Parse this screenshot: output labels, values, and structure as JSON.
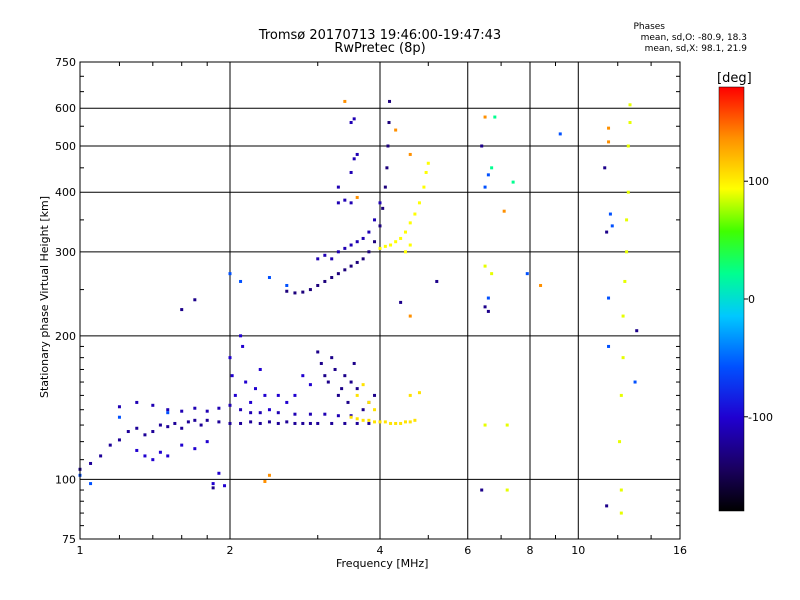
{
  "header": {
    "title_line1": "Tromsø 20170713 19:46:00-19:47:43",
    "title_line2": "RwPretec (8p)",
    "stats_title": "Phases",
    "stats_o": "mean, sd,O: -80.9, 18.3",
    "stats_x": "mean, sd,X:  98.1, 21.9"
  },
  "chart_data": {
    "type": "scatter",
    "xlabel": "Frequency [MHz]",
    "ylabel": "Stationary phase Virtual Height [km]",
    "x_scale": "log",
    "y_scale": "log",
    "xlim": [
      1,
      16
    ],
    "ylim": [
      75,
      750
    ],
    "x_ticks": [
      1,
      2,
      4,
      6,
      8,
      10,
      16
    ],
    "x_tick_labels": [
      "1",
      "2",
      "4",
      "6",
      "8",
      "10",
      "16"
    ],
    "x_gridlines": [
      2,
      4,
      6,
      8,
      10
    ],
    "y_ticks": [
      75,
      100,
      200,
      300,
      400,
      500,
      600,
      750
    ],
    "y_tick_labels": [
      "75",
      "100",
      "200",
      "300",
      "400",
      "500",
      "600",
      "750"
    ],
    "y_gridlines": [
      100,
      200,
      300,
      400,
      500,
      600
    ],
    "grid": true,
    "colorbar": {
      "label": "[deg]",
      "range": [
        -180,
        180
      ],
      "ticks": [
        100,
        0,
        -100
      ],
      "tick_labels": [
        "100",
        "0",
        "-100"
      ],
      "colors": [
        "#000000",
        "#1a0060",
        "#2000d0",
        "#0050ff",
        "#00c8ff",
        "#00ff90",
        "#40ff00",
        "#ffff00",
        "#ff9000",
        "#ff0000"
      ]
    },
    "series": [
      {
        "phase": -120,
        "points": [
          [
            1.0,
            105
          ],
          [
            1.05,
            108
          ],
          [
            1.1,
            112
          ],
          [
            1.15,
            118
          ],
          [
            1.2,
            121
          ],
          [
            1.25,
            126
          ],
          [
            1.3,
            128
          ],
          [
            1.35,
            124
          ],
          [
            1.4,
            126
          ],
          [
            1.45,
            130
          ],
          [
            1.5,
            129
          ],
          [
            1.55,
            131
          ],
          [
            1.6,
            128
          ],
          [
            1.65,
            132
          ],
          [
            1.7,
            133
          ],
          [
            1.75,
            130
          ],
          [
            1.8,
            133
          ],
          [
            1.9,
            132
          ],
          [
            2.0,
            131
          ],
          [
            2.1,
            131
          ],
          [
            2.2,
            132
          ],
          [
            2.3,
            131
          ],
          [
            2.4,
            132
          ],
          [
            2.5,
            131
          ],
          [
            2.6,
            132
          ],
          [
            2.7,
            131
          ],
          [
            2.8,
            131
          ],
          [
            2.9,
            131
          ],
          [
            3.0,
            131
          ],
          [
            3.2,
            131
          ],
          [
            3.4,
            131
          ],
          [
            3.6,
            131
          ],
          [
            3.8,
            131
          ]
        ]
      },
      {
        "phase": -110,
        "points": [
          [
            1.2,
            142
          ],
          [
            1.3,
            145
          ],
          [
            1.4,
            143
          ],
          [
            1.5,
            140
          ],
          [
            1.6,
            139
          ],
          [
            1.7,
            141
          ],
          [
            1.8,
            139
          ],
          [
            1.9,
            141
          ],
          [
            2.0,
            143
          ],
          [
            2.1,
            140
          ],
          [
            2.2,
            138
          ],
          [
            2.3,
            138
          ],
          [
            2.5,
            138
          ],
          [
            2.7,
            137
          ],
          [
            2.9,
            137
          ],
          [
            3.1,
            137
          ],
          [
            3.3,
            136
          ],
          [
            3.5,
            136
          ]
        ]
      },
      {
        "phase": -100,
        "points": [
          [
            1.3,
            115
          ],
          [
            1.35,
            112
          ],
          [
            1.4,
            110
          ],
          [
            1.45,
            114
          ],
          [
            1.5,
            112
          ],
          [
            1.6,
            118
          ],
          [
            1.7,
            116
          ],
          [
            1.8,
            120
          ],
          [
            1.85,
            98
          ],
          [
            1.9,
            103
          ],
          [
            1.95,
            97
          ],
          [
            2.0,
            180
          ],
          [
            2.02,
            165
          ],
          [
            2.05,
            150
          ],
          [
            2.1,
            200
          ],
          [
            2.12,
            190
          ],
          [
            2.15,
            160
          ],
          [
            2.2,
            145
          ],
          [
            2.25,
            155
          ],
          [
            2.3,
            170
          ],
          [
            2.35,
            150
          ],
          [
            2.4,
            140
          ],
          [
            2.5,
            150
          ],
          [
            2.6,
            145
          ],
          [
            2.7,
            150
          ],
          [
            2.8,
            165
          ],
          [
            2.9,
            158
          ]
        ]
      },
      {
        "phase": -125,
        "points": [
          [
            3.0,
            185
          ],
          [
            3.05,
            175
          ],
          [
            3.1,
            165
          ],
          [
            3.15,
            160
          ],
          [
            3.2,
            180
          ],
          [
            3.25,
            170
          ],
          [
            3.3,
            150
          ],
          [
            3.35,
            155
          ],
          [
            3.4,
            165
          ],
          [
            3.45,
            145
          ],
          [
            3.5,
            160
          ],
          [
            3.55,
            175
          ],
          [
            3.6,
            155
          ],
          [
            3.7,
            140
          ],
          [
            3.8,
            145
          ],
          [
            3.9,
            150
          ]
        ]
      },
      {
        "phase": -130,
        "points": [
          [
            2.6,
            248
          ],
          [
            2.7,
            246
          ],
          [
            2.8,
            247
          ],
          [
            2.9,
            250
          ],
          [
            3.0,
            255
          ],
          [
            3.1,
            260
          ],
          [
            3.2,
            265
          ],
          [
            3.3,
            270
          ],
          [
            3.4,
            275
          ],
          [
            3.5,
            280
          ],
          [
            3.6,
            285
          ],
          [
            3.7,
            290
          ],
          [
            3.8,
            300
          ],
          [
            3.9,
            315
          ],
          [
            4.0,
            340
          ],
          [
            4.05,
            370
          ],
          [
            4.1,
            410
          ],
          [
            4.13,
            450
          ],
          [
            4.15,
            500
          ],
          [
            4.17,
            560
          ],
          [
            4.18,
            620
          ]
        ]
      },
      {
        "phase": -110,
        "points": [
          [
            3.0,
            290
          ],
          [
            3.1,
            295
          ],
          [
            3.2,
            290
          ],
          [
            3.3,
            300
          ],
          [
            3.4,
            305
          ],
          [
            3.5,
            310
          ],
          [
            3.6,
            315
          ],
          [
            3.7,
            320
          ],
          [
            3.8,
            330
          ],
          [
            3.9,
            350
          ],
          [
            4.0,
            380
          ],
          [
            3.3,
            380
          ],
          [
            3.4,
            385
          ],
          [
            3.5,
            380
          ],
          [
            3.3,
            410
          ],
          [
            3.5,
            440
          ],
          [
            3.55,
            470
          ],
          [
            3.6,
            480
          ],
          [
            3.5,
            560
          ],
          [
            3.55,
            570
          ]
        ]
      },
      {
        "phase": 100,
        "points": [
          [
            4.0,
            305
          ],
          [
            4.1,
            308
          ],
          [
            4.2,
            310
          ],
          [
            4.3,
            315
          ],
          [
            4.4,
            320
          ],
          [
            4.5,
            330
          ],
          [
            4.6,
            345
          ],
          [
            4.7,
            360
          ],
          [
            4.8,
            380
          ],
          [
            4.9,
            410
          ],
          [
            4.95,
            440
          ],
          [
            5.0,
            460
          ],
          [
            4.5,
            300
          ],
          [
            4.6,
            310
          ]
        ]
      },
      {
        "phase": 110,
        "points": [
          [
            3.5,
            135
          ],
          [
            3.6,
            134
          ],
          [
            3.7,
            133
          ],
          [
            3.8,
            133
          ],
          [
            3.9,
            132
          ],
          [
            4.0,
            132
          ],
          [
            4.1,
            132
          ],
          [
            4.2,
            131
          ],
          [
            4.3,
            131
          ],
          [
            4.4,
            131
          ],
          [
            4.5,
            132
          ],
          [
            4.6,
            132
          ],
          [
            4.7,
            133
          ],
          [
            3.6,
            150
          ],
          [
            3.7,
            158
          ],
          [
            3.8,
            145
          ],
          [
            3.9,
            140
          ],
          [
            4.6,
            150
          ],
          [
            4.8,
            152
          ]
        ]
      },
      {
        "phase": 140,
        "points": [
          [
            3.4,
            620
          ],
          [
            3.6,
            390
          ],
          [
            4.3,
            540
          ],
          [
            4.6,
            480
          ],
          [
            4.6,
            220
          ],
          [
            2.35,
            99
          ],
          [
            2.4,
            102
          ],
          [
            6.5,
            575
          ],
          [
            7.1,
            365
          ],
          [
            8.4,
            255
          ],
          [
            11.5,
            545
          ],
          [
            11.5,
            510
          ]
        ]
      },
      {
        "phase": 95,
        "points": [
          [
            6.5,
            130
          ],
          [
            6.5,
            280
          ],
          [
            6.7,
            270
          ],
          [
            7.2,
            95
          ],
          [
            7.2,
            130
          ],
          [
            12.1,
            120
          ],
          [
            12.2,
            150
          ],
          [
            12.3,
            180
          ],
          [
            12.3,
            220
          ],
          [
            12.4,
            260
          ],
          [
            12.5,
            300
          ],
          [
            12.5,
            350
          ],
          [
            12.6,
            400
          ],
          [
            12.6,
            500
          ],
          [
            12.7,
            560
          ],
          [
            12.7,
            610
          ],
          [
            12.2,
            95
          ],
          [
            12.2,
            85
          ]
        ]
      },
      {
        "phase": 20,
        "points": [
          [
            6.8,
            575
          ],
          [
            7.4,
            420
          ],
          [
            6.7,
            450
          ]
        ]
      },
      {
        "phase": -60,
        "points": [
          [
            1.0,
            102
          ],
          [
            1.05,
            98
          ],
          [
            1.2,
            135
          ],
          [
            1.5,
            138
          ],
          [
            2.0,
            270
          ],
          [
            2.1,
            260
          ],
          [
            2.4,
            265
          ],
          [
            2.6,
            255
          ],
          [
            6.5,
            410
          ],
          [
            6.6,
            435
          ],
          [
            6.6,
            240
          ],
          [
            7.9,
            270
          ],
          [
            9.2,
            530
          ],
          [
            11.6,
            360
          ],
          [
            11.7,
            340
          ],
          [
            11.5,
            240
          ],
          [
            11.5,
            190
          ],
          [
            13.0,
            160
          ]
        ]
      },
      {
        "phase": -125,
        "points": [
          [
            6.4,
            500
          ],
          [
            6.5,
            230
          ],
          [
            6.6,
            225
          ],
          [
            6.4,
            95
          ],
          [
            11.3,
            450
          ],
          [
            11.4,
            330
          ],
          [
            11.4,
            88
          ],
          [
            13.1,
            205
          ],
          [
            5.2,
            260
          ],
          [
            4.4,
            235
          ],
          [
            1.6,
            227
          ],
          [
            1.7,
            238
          ],
          [
            1.85,
            96
          ]
        ]
      }
    ]
  }
}
